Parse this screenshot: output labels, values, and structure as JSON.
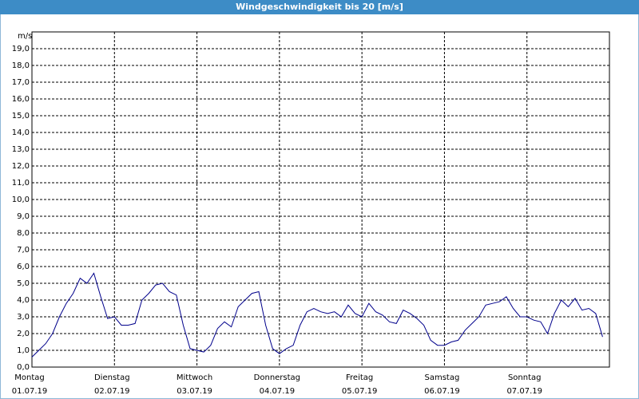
{
  "chart_data": {
    "type": "line",
    "title": "Windgeschwindigkeit bis 20 [m/s]",
    "y_unit": "m/s",
    "x": [
      0,
      2,
      4,
      6,
      8,
      10,
      12,
      14,
      16,
      18,
      20,
      22,
      24,
      26,
      28,
      30,
      32,
      34,
      36,
      38,
      40,
      42,
      44,
      46,
      48,
      50,
      52,
      54,
      56,
      58,
      60,
      62,
      64,
      66,
      68,
      70,
      72,
      74,
      76,
      78,
      80,
      82,
      84,
      86,
      88,
      90,
      92,
      94,
      96,
      98,
      100,
      102,
      104,
      106,
      108,
      110,
      112,
      114,
      116,
      118,
      120,
      122,
      124,
      126,
      128,
      130,
      132,
      134,
      136,
      138,
      140,
      142,
      144,
      146,
      148,
      150,
      152,
      154,
      156,
      158,
      160,
      162,
      164,
      166
    ],
    "series": [
      {
        "name": "Windgeschwindigkeit",
        "color": "#00008b",
        "values": [
          0.6,
          1.0,
          1.4,
          2.0,
          3.0,
          3.8,
          4.4,
          5.3,
          5.0,
          5.6,
          4.2,
          2.9,
          3.0,
          2.5,
          2.5,
          2.6,
          4.0,
          4.4,
          4.9,
          5.0,
          4.5,
          4.3,
          2.5,
          1.1,
          1.0,
          0.9,
          1.3,
          2.3,
          2.7,
          2.4,
          3.6,
          4.0,
          4.4,
          4.5,
          2.5,
          1.1,
          0.8,
          1.1,
          1.3,
          2.5,
          3.3,
          3.5,
          3.3,
          3.2,
          3.3,
          3.0,
          3.7,
          3.2,
          3.0,
          3.8,
          3.3,
          3.1,
          2.7,
          2.6,
          3.4,
          3.2,
          2.9,
          2.5,
          1.6,
          1.3,
          1.3,
          1.5,
          1.6,
          2.2,
          2.6,
          3.0,
          3.7,
          3.8,
          3.9,
          4.2,
          3.5,
          3.0,
          3.0,
          2.8,
          2.7,
          2.0,
          3.2,
          4.0,
          3.6,
          4.1,
          3.4,
          3.5,
          3.2,
          1.8
        ]
      }
    ],
    "xlim": [
      0,
      168
    ],
    "xticks": [
      {
        "value": 0,
        "label": "Montag",
        "date": "01.07.19"
      },
      {
        "value": 24,
        "label": "Dienstag",
        "date": "02.07.19"
      },
      {
        "value": 48,
        "label": "Mittwoch",
        "date": "03.07.19"
      },
      {
        "value": 72,
        "label": "Donnerstag",
        "date": "04.07.19"
      },
      {
        "value": 96,
        "label": "Freitag",
        "date": "05.07.19"
      },
      {
        "value": 120,
        "label": "Samstag",
        "date": "06.07.19"
      },
      {
        "value": 144,
        "label": "Sonntag",
        "date": "07.07.19"
      }
    ],
    "ylim": [
      0,
      20
    ],
    "yticks": [
      {
        "value": 0,
        "label": "0,0"
      },
      {
        "value": 1,
        "label": "1,0"
      },
      {
        "value": 2,
        "label": "2,0"
      },
      {
        "value": 3,
        "label": "3,0"
      },
      {
        "value": 4,
        "label": "4,0"
      },
      {
        "value": 5,
        "label": "5,0"
      },
      {
        "value": 6,
        "label": "6,0"
      },
      {
        "value": 7,
        "label": "7,0"
      },
      {
        "value": 8,
        "label": "8,0"
      },
      {
        "value": 9,
        "label": "9,0"
      },
      {
        "value": 10,
        "label": "10,0"
      },
      {
        "value": 11,
        "label": "11,0"
      },
      {
        "value": 12,
        "label": "12,0"
      },
      {
        "value": 13,
        "label": "13,0"
      },
      {
        "value": 14,
        "label": "14,0"
      },
      {
        "value": 15,
        "label": "15,0"
      },
      {
        "value": 16,
        "label": "16,0"
      },
      {
        "value": 17,
        "label": "17,0"
      },
      {
        "value": 18,
        "label": "18,0"
      },
      {
        "value": 19,
        "label": "19,0"
      }
    ],
    "grid": true
  }
}
